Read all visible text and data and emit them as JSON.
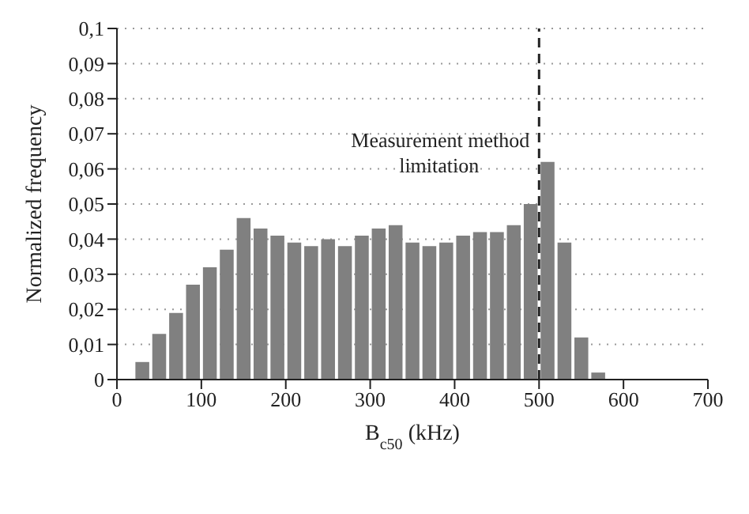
{
  "chart_data": {
    "type": "histogram",
    "xlabel": "B$_{c50}$ (kHz)",
    "ylabel": "Normalized frequency",
    "bins": [
      20,
      40,
      60,
      80,
      100,
      120,
      140,
      160,
      180,
      200,
      220,
      240,
      260,
      280,
      300,
      320,
      340,
      360,
      380,
      400,
      420,
      440,
      460,
      480,
      500,
      520,
      540,
      560,
      580
    ],
    "values": [
      0.005,
      0.013,
      0.019,
      0.027,
      0.032,
      0.037,
      0.046,
      0.043,
      0.041,
      0.039,
      0.038,
      0.04,
      0.038,
      0.041,
      0.043,
      0.044,
      0.039,
      0.038,
      0.039,
      0.041,
      0.042,
      0.042,
      0.044,
      0.05,
      0.062,
      0.039,
      0.012,
      0.002
    ],
    "color": "#808080",
    "xlim": [
      0,
      700
    ],
    "xticks": [
      0,
      100,
      200,
      300,
      400,
      500,
      600,
      700
    ],
    "ylim": [
      0,
      0.1
    ],
    "yticks": [
      0,
      {
        "value": 0.01,
        "label": "0,01"
      },
      {
        "value": 0.02,
        "label": "0,02"
      },
      {
        "value": 0.03,
        "label": "0,03"
      },
      {
        "value": 0.04,
        "label": "0,04"
      },
      {
        "value": 0.05,
        "label": "0,05"
      },
      {
        "value": 0.06,
        "label": "0,06"
      },
      {
        "value": 0.07,
        "label": "0,07"
      },
      {
        "value": 0.08,
        "label": "0,08"
      },
      {
        "value": 0.09,
        "label": "0,09"
      },
      {
        "value": 0.1,
        "label": "0,1"
      }
    ],
    "grid": "y",
    "ref_lines": [
      {
        "axis": "x",
        "value": 500,
        "label": "Measurement method limitation",
        "line_style": "dashed"
      }
    ]
  }
}
